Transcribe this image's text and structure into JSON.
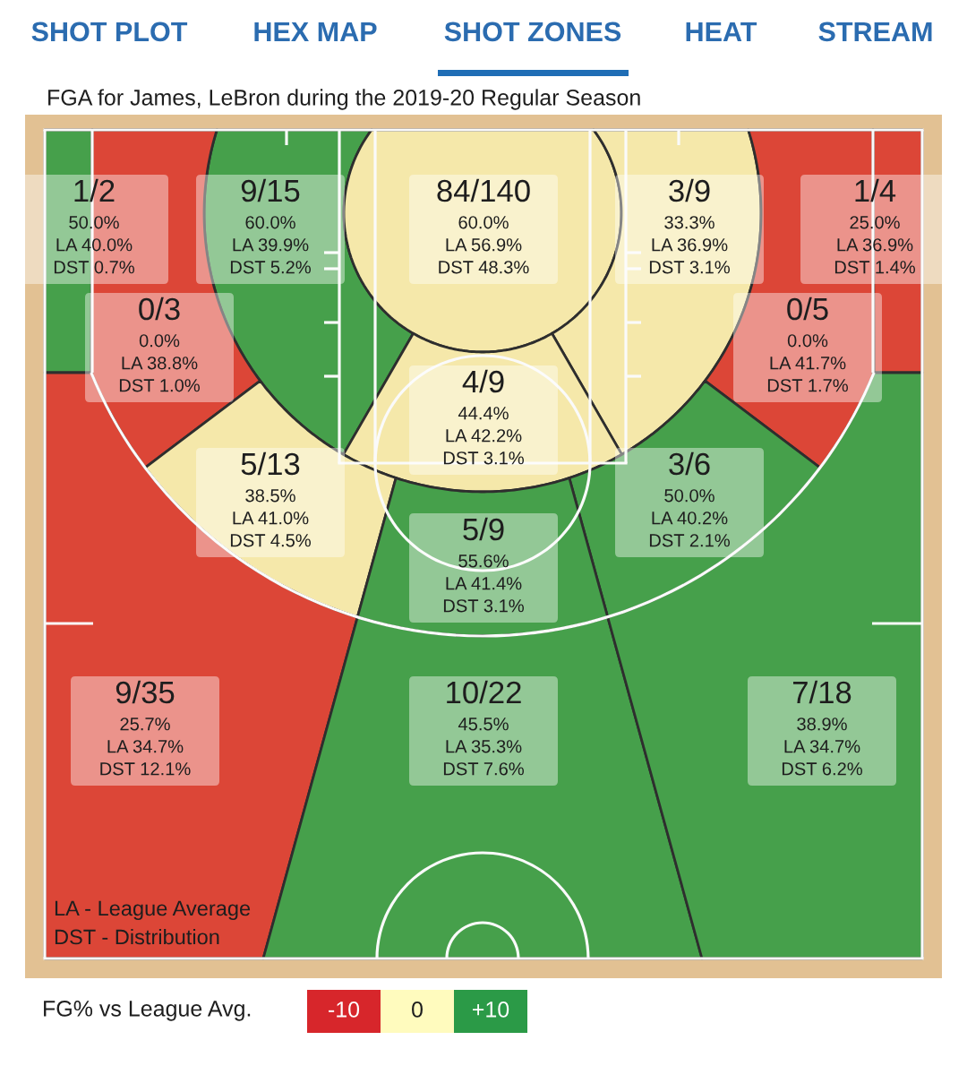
{
  "chart_data": [
    {
      "type": "other",
      "annotations": [
        "SHOT PLOT",
        "HEX MAP",
        "SHOT ZONES",
        "HEAT",
        "STREAM"
      ]
    },
    {
      "type": "other",
      "title": "FGA for James, LeBron during the 2019-20 Regular Season",
      "categories": [
        null,
        null,
        null,
        null,
        null,
        null,
        null,
        null,
        null,
        null,
        null,
        null,
        null,
        null
      ],
      "values": [
        50.0,
        60.0,
        60.0,
        33.3,
        25.0,
        0.0,
        0.0,
        44.4,
        38.5,
        50.0,
        55.6,
        25.7,
        45.5,
        38.9
      ],
      "colors": [
        "#46a04b",
        "#46a04b",
        "#f5e8aa",
        "#f5e8aa",
        "#dc4637",
        "#dc4637",
        "#dc4637",
        "#f5e8aa",
        "#f5e8aa",
        "#46a04b",
        "#46a04b",
        "#dc4637",
        "#46a04b",
        "#46a04b"
      ],
      "value_labels": [
        "1/2\n50.0%\nLA 40.0%\nDST 0.7%",
        "9/15\n60.0%\nLA 39.9%\nDST 5.2%",
        "84/140\n60.0%\nLA 56.9%\nDST 48.3%",
        "3/9\n33.3%\nLA 36.9%\nDST 3.1%",
        "1/4\n25.0%\nLA 36.9%\nDST 1.4%",
        "0/3\n0.0%\nLA 38.8%\nDST 1.0%",
        "0/5\n0.0%\nLA 41.7%\nDST 1.7%",
        "4/9\n44.4%\nLA 42.2%\nDST 3.1%",
        "5/13\n38.5%\nLA 41.0%\nDST 4.5%",
        "3/6\n50.0%\nLA 40.2%\nDST 2.1%",
        "5/9\n55.6%\nLA 41.4%\nDST 3.1%",
        "9/35\n25.7%\nLA 34.7%\nDST 12.1%",
        "10/22\n45.5%\nLA 35.3%\nDST 7.6%",
        "7/18\n38.9%\nLA 34.7%\nDST 6.2%"
      ],
      "annotations": [
        "LA - League Average",
        "DST - Distribution"
      ]
    },
    {
      "type": "other",
      "legend_title": "FG% vs League Avg.",
      "categories": [
        "-10",
        "0",
        "+10"
      ],
      "colors": [
        "#d7262b",
        "#fffbbe",
        "#2b9a47"
      ]
    }
  ]
}
